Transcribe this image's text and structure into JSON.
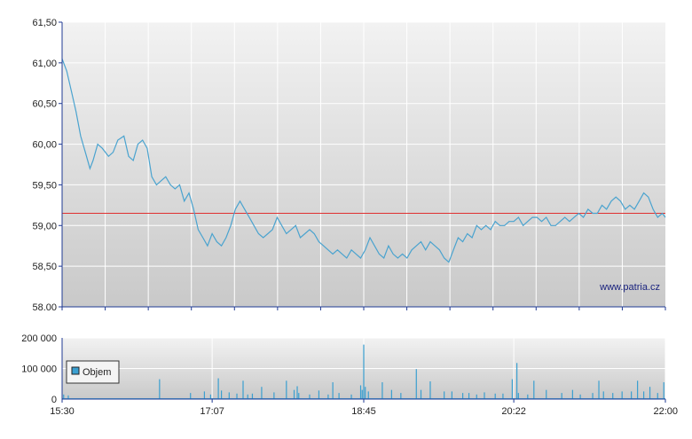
{
  "colors": {
    "price_line": "#4aa3cf",
    "reference_line": "#e03030",
    "volume_bar": "#3a9fd0",
    "grid": "#ffffff",
    "axis": "#1f3a93",
    "plot_bg_top": "#f2f2f2",
    "plot_bg_bottom": "#c9c9c9"
  },
  "watermark": "www.patria.cz",
  "chart_data": [
    {
      "type": "line",
      "name": "price",
      "ylim": [
        58.0,
        61.5
      ],
      "y_ticks": [
        "58.00",
        "58,50",
        "59,00",
        "59,50",
        "60,00",
        "60,50",
        "61,00",
        "61,50"
      ],
      "y_tick_values": [
        58.0,
        58.5,
        59.0,
        59.5,
        60.0,
        60.5,
        61.0,
        61.5
      ],
      "x_range": [
        "15:30",
        "22:00"
      ],
      "x_range_minutes": [
        0,
        390
      ],
      "reference_line": 59.15,
      "grid": true,
      "x": [
        0,
        3,
        6,
        9,
        12,
        15,
        18,
        20,
        23,
        26,
        30,
        33,
        36,
        40,
        43,
        46,
        49,
        52,
        55,
        58,
        61,
        64,
        67,
        70,
        73,
        76,
        79,
        82,
        85,
        88,
        91,
        94,
        97,
        100,
        103,
        106,
        109,
        112,
        115,
        118,
        121,
        124,
        127,
        130,
        133,
        136,
        139,
        142,
        145,
        148,
        151,
        154,
        157,
        160,
        163,
        166,
        169,
        172,
        175,
        178,
        181,
        184,
        187,
        190,
        193,
        196,
        199,
        202,
        205,
        208,
        211,
        214,
        217,
        220,
        223,
        226,
        229,
        232,
        235,
        238,
        241,
        244,
        247,
        250,
        253,
        256,
        259,
        262,
        265,
        268,
        271,
        274,
        277,
        280,
        283,
        286,
        289,
        292,
        295,
        298,
        301,
        304,
        307,
        310,
        313,
        316,
        319,
        322,
        325,
        328,
        331,
        334,
        337,
        340,
        343,
        346,
        349,
        352,
        355,
        358,
        361,
        364,
        367,
        370,
        373,
        376,
        379,
        382,
        385,
        388,
        390
      ],
      "values": [
        61.05,
        60.9,
        60.65,
        60.4,
        60.1,
        59.9,
        59.7,
        59.8,
        60.0,
        59.95,
        59.85,
        59.9,
        60.05,
        60.1,
        59.85,
        59.8,
        60.0,
        60.05,
        59.95,
        59.6,
        59.5,
        59.55,
        59.6,
        59.5,
        59.45,
        59.5,
        59.3,
        59.4,
        59.2,
        58.95,
        58.85,
        58.75,
        58.9,
        58.8,
        58.75,
        58.85,
        59.0,
        59.2,
        59.3,
        59.2,
        59.1,
        59.0,
        58.9,
        58.85,
        58.9,
        58.95,
        59.1,
        59.0,
        58.9,
        58.95,
        59.0,
        58.85,
        58.9,
        58.95,
        58.9,
        58.8,
        58.75,
        58.7,
        58.65,
        58.7,
        58.65,
        58.6,
        58.7,
        58.65,
        58.6,
        58.7,
        58.85,
        58.75,
        58.65,
        58.6,
        58.75,
        58.65,
        58.6,
        58.65,
        58.6,
        58.7,
        58.75,
        58.8,
        58.7,
        58.8,
        58.75,
        58.7,
        58.6,
        58.55,
        58.7,
        58.85,
        58.8,
        58.9,
        58.85,
        59.0,
        58.95,
        59.0,
        58.95,
        59.05,
        59.0,
        59.0,
        59.05,
        59.05,
        59.1,
        59.0,
        59.05,
        59.1,
        59.1,
        59.05,
        59.1,
        59.0,
        59.0,
        59.05,
        59.1,
        59.05,
        59.1,
        59.15,
        59.1,
        59.2,
        59.15,
        59.15,
        59.25,
        59.2,
        59.3,
        59.35,
        59.3,
        59.2,
        59.25,
        59.2,
        59.3,
        59.4,
        59.35,
        59.2,
        59.1,
        59.15,
        59.1
      ]
    },
    {
      "type": "bar",
      "name": "volume",
      "legend": [
        "Objem"
      ],
      "ylim": [
        0,
        200000
      ],
      "y_ticks": [
        "0",
        "100 000",
        "200 000"
      ],
      "y_tick_values": [
        0,
        100000,
        200000
      ],
      "x_ticks": [
        "15:30",
        "17:07",
        "18:45",
        "20:22",
        "22:00"
      ],
      "x_tick_values": [
        0,
        97,
        195,
        292,
        390
      ],
      "baseline": 3000,
      "x": [
        1,
        4,
        63,
        83,
        92,
        96,
        101,
        103,
        108,
        113,
        117,
        120,
        123,
        129,
        137,
        145,
        150,
        152,
        153,
        160,
        166,
        172,
        175,
        179,
        187,
        193,
        194,
        195,
        196,
        198,
        207,
        213,
        219,
        229,
        232,
        238,
        247,
        252,
        259,
        263,
        268,
        273,
        280,
        285,
        291,
        294,
        295,
        301,
        305,
        313,
        323,
        330,
        335,
        343,
        347,
        350,
        356,
        362,
        368,
        372,
        376,
        380,
        385,
        389
      ],
      "values": [
        15000,
        12000,
        65000,
        20000,
        25000,
        15000,
        68000,
        28000,
        22000,
        18000,
        60000,
        15000,
        18000,
        40000,
        22000,
        60000,
        30000,
        42000,
        20000,
        15000,
        28000,
        15000,
        55000,
        20000,
        15000,
        45000,
        30000,
        178000,
        40000,
        25000,
        55000,
        30000,
        20000,
        98000,
        30000,
        58000,
        25000,
        25000,
        20000,
        20000,
        15000,
        22000,
        18000,
        18000,
        65000,
        118000,
        20000,
        15000,
        60000,
        30000,
        20000,
        30000,
        15000,
        20000,
        60000,
        25000,
        20000,
        25000,
        25000,
        60000,
        25000,
        40000,
        20000,
        55000
      ]
    }
  ]
}
